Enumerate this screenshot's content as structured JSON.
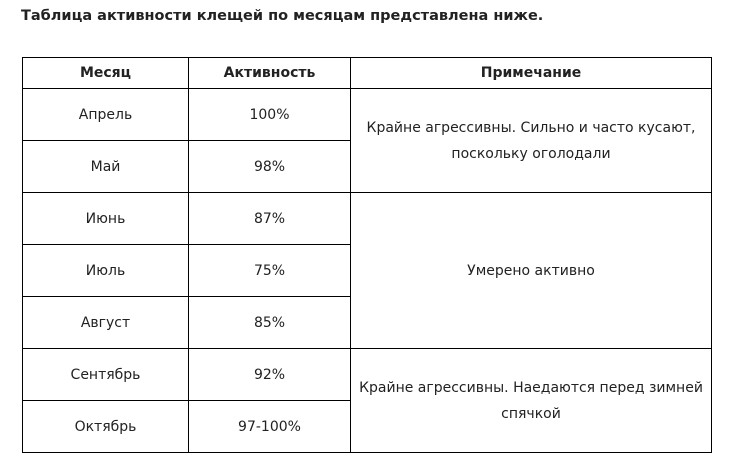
{
  "heading": "Таблица активности клещей по месяцам представлена ниже.",
  "table": {
    "headers": [
      "Месяц",
      "Активность",
      "Примечание"
    ],
    "rows": [
      {
        "month": "Апрель",
        "activity": "100%"
      },
      {
        "month": "Май",
        "activity": "98%"
      },
      {
        "month": "Июнь",
        "activity": "87%"
      },
      {
        "month": "Июль",
        "activity": "75%"
      },
      {
        "month": "Август",
        "activity": "85%"
      },
      {
        "month": "Сентябрь",
        "activity": "92%"
      },
      {
        "month": "Октябрь",
        "activity": "97-100%"
      }
    ],
    "notes": {
      "spring": "Крайне агрессивны. Сильно и часто кусают, поскольку оголодали",
      "summer": "Умерено активно",
      "autumn": "Крайне агрессивны. Наедаются перед зимней спячкой"
    }
  }
}
